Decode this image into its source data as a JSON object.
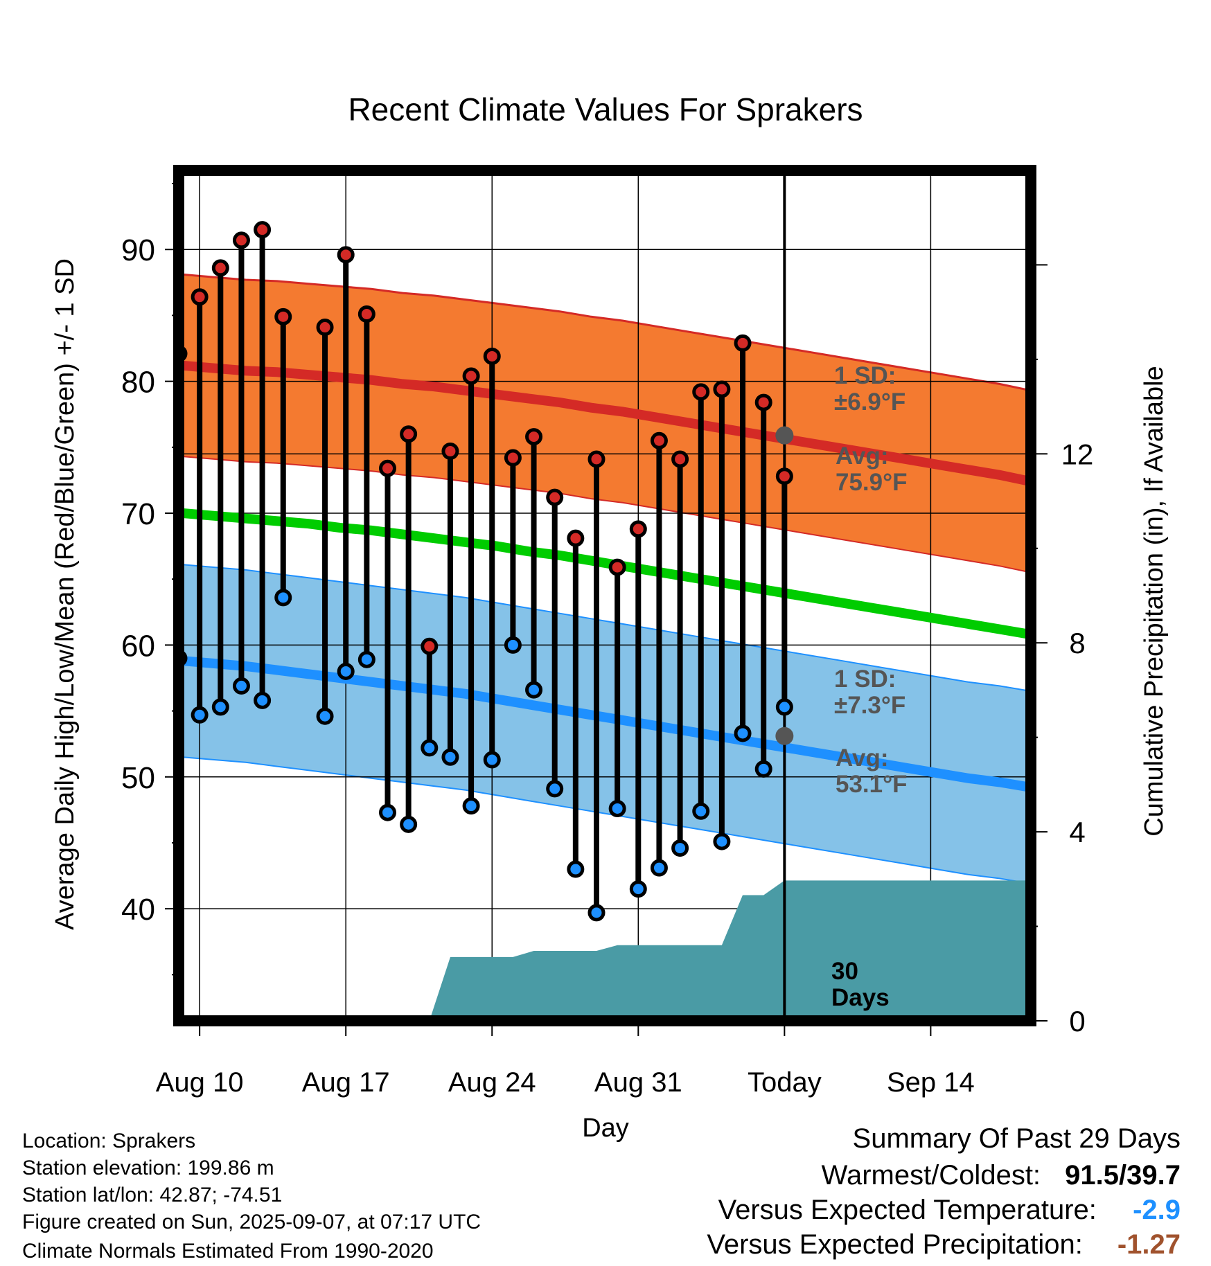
{
  "chart_data": {
    "type": "line",
    "title": "Recent Climate Values For Sprakers",
    "xlabel": "Day",
    "ylabel": "Average Daily High/Low/Mean (Red/Blue/Green) +/- 1 SD",
    "y2label": "Cumulative Precipitation (in), If Available",
    "ylim": [
      31.5,
      96
    ],
    "y2lim": [
      0,
      18
    ],
    "y_ticks": [
      40,
      50,
      60,
      70,
      80,
      90
    ],
    "y2_ticks": [
      0,
      4,
      8,
      12
    ],
    "x_ticks": [
      "Aug 10",
      "Aug 17",
      "Aug 24",
      "Aug 31",
      "Today",
      "Sep 14"
    ],
    "grid": true,
    "days": [
      "Aug 9",
      "Aug 10",
      "Aug 11",
      "Aug 12",
      "Aug 13",
      "Aug 14",
      "Aug 15",
      "Aug 16",
      "Aug 17",
      "Aug 18",
      "Aug 19",
      "Aug 20",
      "Aug 21",
      "Aug 22",
      "Aug 23",
      "Aug 24",
      "Aug 25",
      "Aug 26",
      "Aug 27",
      "Aug 28",
      "Aug 29",
      "Aug 30",
      "Aug 31",
      "Sep 1",
      "Sep 2",
      "Sep 3",
      "Sep 4",
      "Sep 5",
      "Sep 6",
      "Sep 7",
      "Sep 8",
      "Sep 9",
      "Sep 10",
      "Sep 11",
      "Sep 12",
      "Sep 13",
      "Sep 14",
      "Sep 15"
    ],
    "observed": {
      "high": [
        82.1,
        86.4,
        88.6,
        90.7,
        91.5,
        84.9,
        null,
        84.1,
        89.6,
        85.1,
        73.4,
        76.0,
        59.9,
        74.7,
        80.4,
        81.9,
        74.2,
        75.8,
        71.2,
        68.1,
        74.1,
        65.9,
        68.8,
        75.5,
        74.1,
        79.2,
        79.4,
        82.9,
        78.4,
        72.8
      ],
      "low": [
        59.0,
        54.7,
        55.3,
        56.9,
        55.8,
        63.6,
        null,
        54.6,
        58.0,
        58.9,
        47.3,
        46.4,
        52.2,
        51.5,
        47.8,
        51.3,
        60.0,
        56.6,
        49.1,
        43.0,
        39.7,
        47.6,
        41.5,
        43.1,
        44.6,
        47.4,
        45.1,
        53.3,
        50.6,
        55.3
      ]
    },
    "normals": {
      "high_mean": [
        81.2,
        81.0,
        80.8,
        80.7,
        80.5,
        80.3,
        80.1,
        79.8,
        79.6,
        79.3,
        79.0,
        78.7,
        78.4,
        78.0,
        77.7,
        77.3,
        76.9,
        76.5,
        76.1,
        75.7,
        75.3,
        74.9,
        74.5,
        74.1,
        73.7,
        73.3,
        72.9,
        72.4
      ],
      "low_mean": [
        58.8,
        58.6,
        58.4,
        58.1,
        57.8,
        57.5,
        57.2,
        56.9,
        56.6,
        56.3,
        55.9,
        55.5,
        55.1,
        54.7,
        54.3,
        53.9,
        53.5,
        53.1,
        52.7,
        52.3,
        51.9,
        51.5,
        51.1,
        50.7,
        50.3,
        49.9,
        49.6,
        49.2
      ],
      "mean": [
        70.0,
        69.8,
        69.6,
        69.4,
        69.2,
        68.9,
        68.7,
        68.4,
        68.1,
        67.8,
        67.5,
        67.1,
        66.8,
        66.4,
        66.0,
        65.6,
        65.2,
        64.8,
        64.4,
        64.0,
        63.6,
        63.2,
        62.8,
        62.4,
        62.0,
        61.6,
        61.2,
        60.8
      ],
      "high_sd": 6.9,
      "low_sd": 7.3
    },
    "precip_cumulative": [
      0,
      0,
      0,
      0,
      0,
      0,
      0,
      0,
      0,
      0,
      0,
      0,
      0,
      1.35,
      1.35,
      1.35,
      1.35,
      1.48,
      1.48,
      1.48,
      1.48,
      1.6,
      1.6,
      1.6,
      1.6,
      1.6,
      1.6,
      2.66,
      2.66,
      2.97,
      2.97,
      2.97,
      2.97,
      2.97,
      2.97,
      2.97,
      2.97,
      2.97
    ],
    "annotations": {
      "high_sd": [
        "1 SD:",
        "±6.9°F"
      ],
      "high_avg": [
        "Avg:",
        "75.9°F"
      ],
      "low_sd": [
        "1 SD:",
        "±7.3°F"
      ],
      "low_avg": [
        "Avg:",
        "53.1°F"
      ],
      "period": [
        "30",
        "Days"
      ]
    },
    "colors": {
      "high_band": "#f47a30",
      "high_line": "#d42a26",
      "low_band": "#85c2e8",
      "low_line": "#1e90ff",
      "mean_line": "#00cc00",
      "precip": "#4a9ba5",
      "high_marker": "#d42a26",
      "low_marker": "#1e90ff",
      "annotation": "#555555"
    }
  },
  "footer": {
    "location": "Location: Sprakers",
    "elevation": "Station elevation: 199.86 m",
    "latlon": "Station lat/lon: 42.87; -74.51",
    "created": "Figure created on Sun, 2025-09-07, at 07:17 UTC",
    "normals": "Climate Normals Estimated From 1990-2020"
  },
  "summary": {
    "title": "Summary Of Past 29 Days",
    "warm_cold_label": "Warmest/Coldest:",
    "warm_cold_value": "91.5/39.7",
    "temp_label": "Versus Expected Temperature:",
    "temp_value": "-2.9",
    "temp_color": "#1e90ff",
    "precip_label": "Versus Expected Precipitation:",
    "precip_value": "-1.27",
    "precip_color": "#a0522d"
  }
}
